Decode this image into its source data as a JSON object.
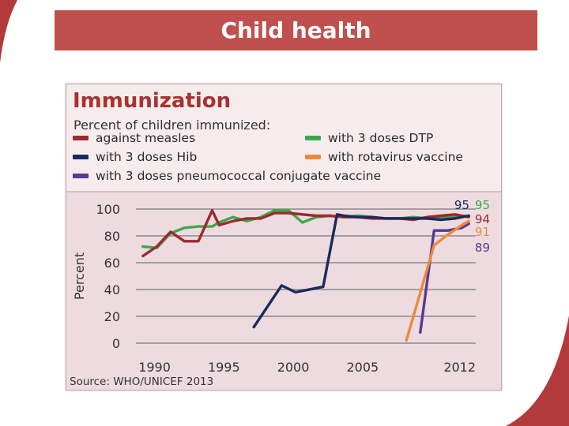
{
  "slide": {
    "title": "Child health"
  },
  "chart_data": {
    "type": "line",
    "title": "Immunization",
    "subtitle": "Percent of children immunized:",
    "ylabel": "Percent",
    "xlabel": "",
    "ylim": [
      0,
      100
    ],
    "yticks": [
      0,
      20,
      40,
      60,
      80,
      100
    ],
    "xticks": [
      1990,
      1995,
      2000,
      2005,
      2012
    ],
    "xlim": [
      1989,
      2013.5
    ],
    "grid": true,
    "source": "Source: WHO/UNICEF 2013",
    "series": [
      {
        "name": "against measles",
        "color": "#9b2a2e",
        "end_label": "94",
        "x": [
          1989.5,
          1990.5,
          1991.5,
          1992.5,
          1993.5,
          1994.5,
          1995,
          1996,
          1997,
          1998,
          1999,
          2000,
          2001,
          2002,
          2003,
          2004,
          2005,
          2006,
          2007,
          2008,
          2009,
          2010,
          2011,
          2012,
          2013
        ],
        "y": [
          65,
          72,
          83,
          76,
          76,
          99,
          88,
          91,
          93,
          93,
          97,
          97,
          96,
          95,
          95,
          94,
          94,
          93,
          93,
          93,
          92,
          94,
          95,
          96,
          94
        ]
      },
      {
        "name": "with 3 doses DTP",
        "color": "#3aaa4a",
        "end_label": "95",
        "x": [
          1989.5,
          1990.5,
          1991.5,
          1992.5,
          1993.5,
          1994.5,
          1995,
          1996,
          1997,
          1998,
          1999,
          2000,
          2001,
          2002,
          2003,
          2004,
          2005,
          2006,
          2007,
          2008,
          2009,
          2010,
          2011,
          2012,
          2013
        ],
        "y": [
          72,
          71,
          82,
          86,
          87,
          87,
          90,
          94,
          91,
          94,
          99,
          99,
          90,
          94,
          95,
          94,
          95,
          94,
          93,
          93,
          94,
          93,
          94,
          94,
          95
        ]
      },
      {
        "name": "with 3 doses Hib",
        "color": "#1a2a5e",
        "end_label": "95",
        "x": [
          1997.5,
          1999.5,
          2000.5,
          2002.5,
          2003.5,
          2004,
          2005,
          2006,
          2007,
          2008,
          2009,
          2010,
          2011,
          2012,
          2013
        ],
        "y": [
          12,
          43,
          38,
          42,
          96,
          95,
          94,
          94,
          93,
          93,
          93,
          93,
          92,
          93,
          95
        ]
      },
      {
        "name": "with 3 doses pneumococcal conjugate vaccine",
        "color": "#5a3a8f",
        "end_label": "89",
        "x": [
          2009.5,
          2010.5,
          2011.5,
          2012.5,
          2013
        ],
        "y": [
          8,
          84,
          84,
          86,
          89
        ]
      },
      {
        "name": "with rotavirus vaccine",
        "color": "#ec8a3a",
        "end_label": "91",
        "x": [
          2008.5,
          2010.5,
          2011.5,
          2012.5,
          2013
        ],
        "y": [
          2,
          73,
          81,
          88,
          91
        ]
      }
    ]
  },
  "legend_layout": [
    {
      "series": 0,
      "col": "left",
      "row": 0
    },
    {
      "series": 1,
      "col": "right",
      "row": 0
    },
    {
      "series": 2,
      "col": "left",
      "row": 1
    },
    {
      "series": 4,
      "col": "right",
      "row": 1
    },
    {
      "series": 3,
      "col": "left",
      "row": 2
    }
  ]
}
